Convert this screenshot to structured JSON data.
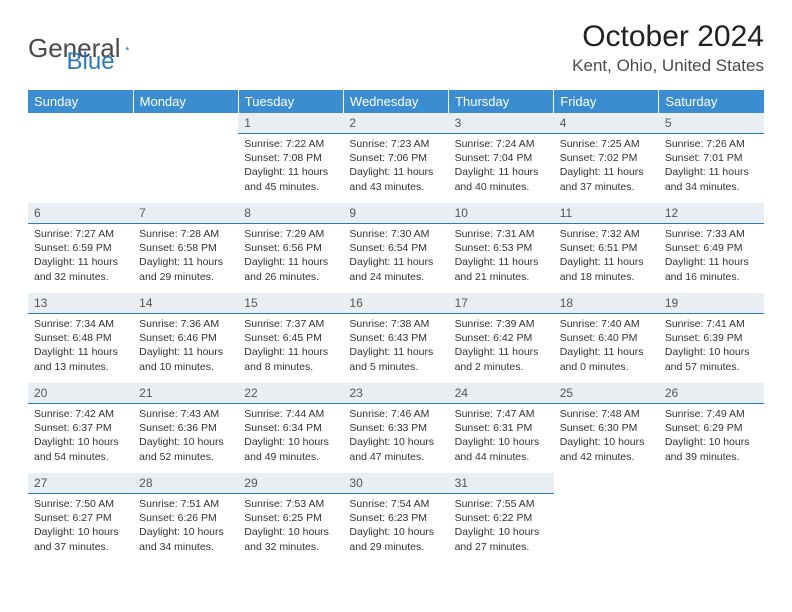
{
  "brand": {
    "part1": "General",
    "part2": "Blue"
  },
  "title": "October 2024",
  "location": "Kent, Ohio, United States",
  "colors": {
    "header_bg": "#3a8dd0",
    "header_text": "#ffffff",
    "daynum_bg": "#e9eef3",
    "daynum_border": "#2b7bbf",
    "body_text": "#333333",
    "brand_gray": "#4a4a4a",
    "brand_blue": "#2b7bbf"
  },
  "weekdays": [
    "Sunday",
    "Monday",
    "Tuesday",
    "Wednesday",
    "Thursday",
    "Friday",
    "Saturday"
  ],
  "weeks": [
    [
      null,
      null,
      {
        "d": "1",
        "sr": "Sunrise: 7:22 AM",
        "ss": "Sunset: 7:08 PM",
        "dl1": "Daylight: 11 hours",
        "dl2": "and 45 minutes."
      },
      {
        "d": "2",
        "sr": "Sunrise: 7:23 AM",
        "ss": "Sunset: 7:06 PM",
        "dl1": "Daylight: 11 hours",
        "dl2": "and 43 minutes."
      },
      {
        "d": "3",
        "sr": "Sunrise: 7:24 AM",
        "ss": "Sunset: 7:04 PM",
        "dl1": "Daylight: 11 hours",
        "dl2": "and 40 minutes."
      },
      {
        "d": "4",
        "sr": "Sunrise: 7:25 AM",
        "ss": "Sunset: 7:02 PM",
        "dl1": "Daylight: 11 hours",
        "dl2": "and 37 minutes."
      },
      {
        "d": "5",
        "sr": "Sunrise: 7:26 AM",
        "ss": "Sunset: 7:01 PM",
        "dl1": "Daylight: 11 hours",
        "dl2": "and 34 minutes."
      }
    ],
    [
      {
        "d": "6",
        "sr": "Sunrise: 7:27 AM",
        "ss": "Sunset: 6:59 PM",
        "dl1": "Daylight: 11 hours",
        "dl2": "and 32 minutes."
      },
      {
        "d": "7",
        "sr": "Sunrise: 7:28 AM",
        "ss": "Sunset: 6:58 PM",
        "dl1": "Daylight: 11 hours",
        "dl2": "and 29 minutes."
      },
      {
        "d": "8",
        "sr": "Sunrise: 7:29 AM",
        "ss": "Sunset: 6:56 PM",
        "dl1": "Daylight: 11 hours",
        "dl2": "and 26 minutes."
      },
      {
        "d": "9",
        "sr": "Sunrise: 7:30 AM",
        "ss": "Sunset: 6:54 PM",
        "dl1": "Daylight: 11 hours",
        "dl2": "and 24 minutes."
      },
      {
        "d": "10",
        "sr": "Sunrise: 7:31 AM",
        "ss": "Sunset: 6:53 PM",
        "dl1": "Daylight: 11 hours",
        "dl2": "and 21 minutes."
      },
      {
        "d": "11",
        "sr": "Sunrise: 7:32 AM",
        "ss": "Sunset: 6:51 PM",
        "dl1": "Daylight: 11 hours",
        "dl2": "and 18 minutes."
      },
      {
        "d": "12",
        "sr": "Sunrise: 7:33 AM",
        "ss": "Sunset: 6:49 PM",
        "dl1": "Daylight: 11 hours",
        "dl2": "and 16 minutes."
      }
    ],
    [
      {
        "d": "13",
        "sr": "Sunrise: 7:34 AM",
        "ss": "Sunset: 6:48 PM",
        "dl1": "Daylight: 11 hours",
        "dl2": "and 13 minutes."
      },
      {
        "d": "14",
        "sr": "Sunrise: 7:36 AM",
        "ss": "Sunset: 6:46 PM",
        "dl1": "Daylight: 11 hours",
        "dl2": "and 10 minutes."
      },
      {
        "d": "15",
        "sr": "Sunrise: 7:37 AM",
        "ss": "Sunset: 6:45 PM",
        "dl1": "Daylight: 11 hours",
        "dl2": "and 8 minutes."
      },
      {
        "d": "16",
        "sr": "Sunrise: 7:38 AM",
        "ss": "Sunset: 6:43 PM",
        "dl1": "Daylight: 11 hours",
        "dl2": "and 5 minutes."
      },
      {
        "d": "17",
        "sr": "Sunrise: 7:39 AM",
        "ss": "Sunset: 6:42 PM",
        "dl1": "Daylight: 11 hours",
        "dl2": "and 2 minutes."
      },
      {
        "d": "18",
        "sr": "Sunrise: 7:40 AM",
        "ss": "Sunset: 6:40 PM",
        "dl1": "Daylight: 11 hours",
        "dl2": "and 0 minutes."
      },
      {
        "d": "19",
        "sr": "Sunrise: 7:41 AM",
        "ss": "Sunset: 6:39 PM",
        "dl1": "Daylight: 10 hours",
        "dl2": "and 57 minutes."
      }
    ],
    [
      {
        "d": "20",
        "sr": "Sunrise: 7:42 AM",
        "ss": "Sunset: 6:37 PM",
        "dl1": "Daylight: 10 hours",
        "dl2": "and 54 minutes."
      },
      {
        "d": "21",
        "sr": "Sunrise: 7:43 AM",
        "ss": "Sunset: 6:36 PM",
        "dl1": "Daylight: 10 hours",
        "dl2": "and 52 minutes."
      },
      {
        "d": "22",
        "sr": "Sunrise: 7:44 AM",
        "ss": "Sunset: 6:34 PM",
        "dl1": "Daylight: 10 hours",
        "dl2": "and 49 minutes."
      },
      {
        "d": "23",
        "sr": "Sunrise: 7:46 AM",
        "ss": "Sunset: 6:33 PM",
        "dl1": "Daylight: 10 hours",
        "dl2": "and 47 minutes."
      },
      {
        "d": "24",
        "sr": "Sunrise: 7:47 AM",
        "ss": "Sunset: 6:31 PM",
        "dl1": "Daylight: 10 hours",
        "dl2": "and 44 minutes."
      },
      {
        "d": "25",
        "sr": "Sunrise: 7:48 AM",
        "ss": "Sunset: 6:30 PM",
        "dl1": "Daylight: 10 hours",
        "dl2": "and 42 minutes."
      },
      {
        "d": "26",
        "sr": "Sunrise: 7:49 AM",
        "ss": "Sunset: 6:29 PM",
        "dl1": "Daylight: 10 hours",
        "dl2": "and 39 minutes."
      }
    ],
    [
      {
        "d": "27",
        "sr": "Sunrise: 7:50 AM",
        "ss": "Sunset: 6:27 PM",
        "dl1": "Daylight: 10 hours",
        "dl2": "and 37 minutes."
      },
      {
        "d": "28",
        "sr": "Sunrise: 7:51 AM",
        "ss": "Sunset: 6:26 PM",
        "dl1": "Daylight: 10 hours",
        "dl2": "and 34 minutes."
      },
      {
        "d": "29",
        "sr": "Sunrise: 7:53 AM",
        "ss": "Sunset: 6:25 PM",
        "dl1": "Daylight: 10 hours",
        "dl2": "and 32 minutes."
      },
      {
        "d": "30",
        "sr": "Sunrise: 7:54 AM",
        "ss": "Sunset: 6:23 PM",
        "dl1": "Daylight: 10 hours",
        "dl2": "and 29 minutes."
      },
      {
        "d": "31",
        "sr": "Sunrise: 7:55 AM",
        "ss": "Sunset: 6:22 PM",
        "dl1": "Daylight: 10 hours",
        "dl2": "and 27 minutes."
      },
      null,
      null
    ]
  ]
}
